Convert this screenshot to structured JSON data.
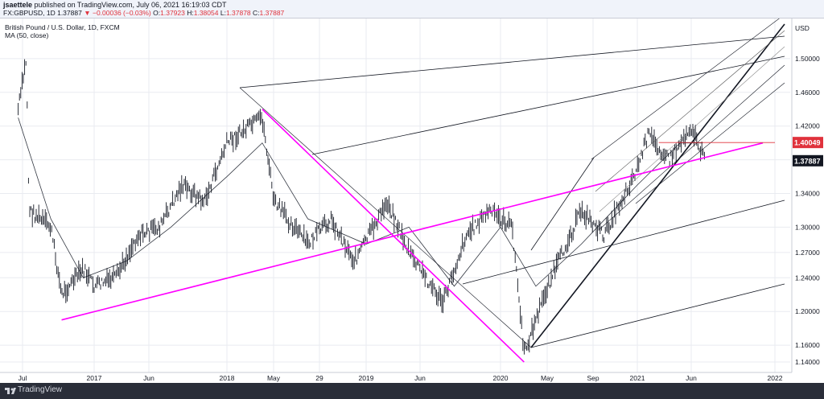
{
  "header": {
    "author": "jsaettele",
    "published": "published on TradingView.com, July 06, 2021 16:19:03 CDT",
    "symbol": "FX:GBPUSD, 1D",
    "last": "1.37887",
    "change": "▼ −0.00036 (−0.03%)",
    "open_label": "O:",
    "open": "1.37923",
    "high_label": "H:",
    "high": "1.38054",
    "low_label": "L:",
    "low": "1.37878",
    "close_label": "C:",
    "close": "1.37887"
  },
  "legend": {
    "title": "British Pound / U.S. Dollar, 1D, FXCM",
    "ma": "MA (50, close)"
  },
  "footer": {
    "brand": "TradingView"
  },
  "colors": {
    "magenta": "#ff00ff",
    "red": "#e0323c",
    "black": "#131722",
    "grid": "#e9ebf0"
  },
  "chart_data": {
    "type": "line",
    "currency": "USD",
    "x_ticks": [
      "Jul",
      "2017",
      "Jun",
      "2018",
      "May",
      "29",
      "2019",
      "Jun",
      "2020",
      "May",
      "Sep",
      "2021",
      "Jun",
      "2022"
    ],
    "y_ticks": [
      "1.50000",
      "1.46000",
      "1.42000",
      "1.38000",
      "1.34000",
      "1.30000",
      "1.27000",
      "1.24000",
      "1.20000",
      "1.16000",
      "1.14000"
    ],
    "ylim": [
      1.12,
      1.54
    ],
    "price_labels": [
      {
        "value": 1.40049,
        "text": "1.40049",
        "style": "red"
      },
      {
        "value": 1.37887,
        "text": "1.37887",
        "style": "black"
      }
    ],
    "price_series": [
      {
        "date": "2016-06",
        "close": 1.44
      },
      {
        "date": "2016-06-24",
        "close": 1.5
      },
      {
        "date": "2016-07",
        "close": 1.32
      },
      {
        "date": "2016-08",
        "close": 1.31
      },
      {
        "date": "2016-09",
        "close": 1.3
      },
      {
        "date": "2016-10",
        "close": 1.22
      },
      {
        "date": "2016-12",
        "close": 1.25
      },
      {
        "date": "2017-01",
        "close": 1.23
      },
      {
        "date": "2017-03",
        "close": 1.24
      },
      {
        "date": "2017-05",
        "close": 1.29
      },
      {
        "date": "2017-07",
        "close": 1.3
      },
      {
        "date": "2017-09",
        "close": 1.35
      },
      {
        "date": "2017-11",
        "close": 1.33
      },
      {
        "date": "2018-01",
        "close": 1.4
      },
      {
        "date": "2018-04",
        "close": 1.43
      },
      {
        "date": "2018-05",
        "close": 1.33
      },
      {
        "date": "2018-08",
        "close": 1.28
      },
      {
        "date": "2018-10",
        "close": 1.31
      },
      {
        "date": "2018-12",
        "close": 1.26
      },
      {
        "date": "2019-03",
        "close": 1.33
      },
      {
        "date": "2019-05",
        "close": 1.27
      },
      {
        "date": "2019-08",
        "close": 1.21
      },
      {
        "date": "2019-10",
        "close": 1.29
      },
      {
        "date": "2019-12",
        "close": 1.32
      },
      {
        "date": "2020-02",
        "close": 1.3
      },
      {
        "date": "2020-03",
        "close": 1.15
      },
      {
        "date": "2020-05",
        "close": 1.23
      },
      {
        "date": "2020-08",
        "close": 1.32
      },
      {
        "date": "2020-10",
        "close": 1.29
      },
      {
        "date": "2021-01",
        "close": 1.37
      },
      {
        "date": "2021-02",
        "close": 1.41
      },
      {
        "date": "2021-04",
        "close": 1.38
      },
      {
        "date": "2021-06",
        "close": 1.42
      },
      {
        "date": "2021-07-06",
        "close": 1.37887
      }
    ],
    "ma_series": [
      {
        "date": "2016-06",
        "value": 1.43
      },
      {
        "date": "2016-09",
        "value": 1.31
      },
      {
        "date": "2016-12",
        "value": 1.24
      },
      {
        "date": "2017-04",
        "value": 1.26
      },
      {
        "date": "2017-08",
        "value": 1.3
      },
      {
        "date": "2018-01",
        "value": 1.36
      },
      {
        "date": "2018-04",
        "value": 1.4
      },
      {
        "date": "2018-08",
        "value": 1.31
      },
      {
        "date": "2019-01",
        "value": 1.28
      },
      {
        "date": "2019-05",
        "value": 1.3
      },
      {
        "date": "2019-09",
        "value": 1.23
      },
      {
        "date": "2020-01",
        "value": 1.3
      },
      {
        "date": "2020-04",
        "value": 1.23
      },
      {
        "date": "2020-08",
        "value": 1.28
      },
      {
        "date": "2021-01",
        "value": 1.35
      },
      {
        "date": "2021-05",
        "value": 1.4
      },
      {
        "date": "2021-07",
        "value": 1.4
      }
    ],
    "lines": [
      {
        "name": "magenta-trendline-rising",
        "color": "magenta",
        "from": {
          "date": "2016-10",
          "value": 1.19
        },
        "to": {
          "date": "2021-12",
          "value": 1.4
        }
      },
      {
        "name": "magenta-trendline-falling",
        "color": "magenta",
        "from": {
          "date": "2018-04",
          "value": 1.44
        },
        "to": {
          "date": "2020-03",
          "value": 1.14
        }
      },
      {
        "name": "red-horizontal-level",
        "color": "red",
        "from": {
          "date": "2021-03",
          "value": 1.40049
        },
        "to": {
          "date": "2022-01",
          "value": 1.40049
        }
      }
    ]
  }
}
